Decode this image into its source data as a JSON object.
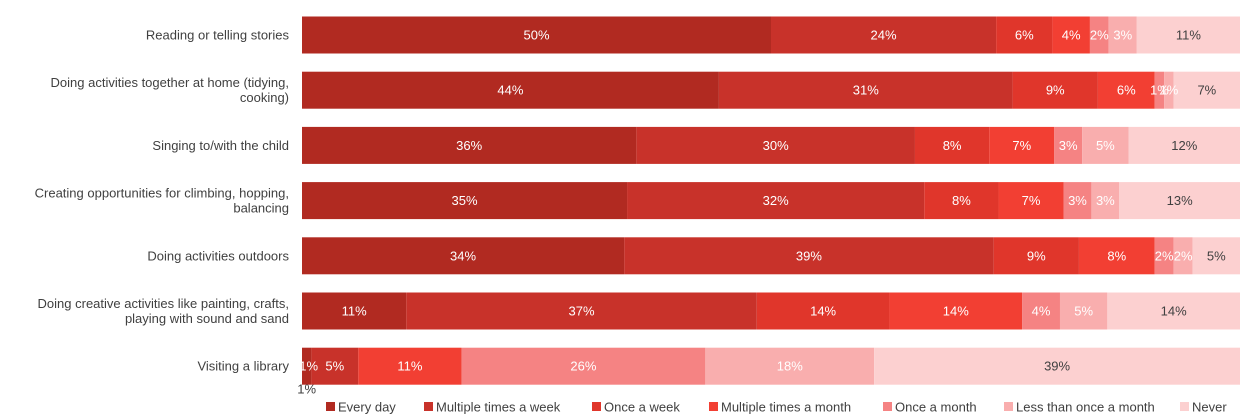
{
  "chart_data": {
    "type": "bar",
    "orientation": "horizontal",
    "stacked": true,
    "normalized": true,
    "categories": [
      "Reading or telling stories",
      "Doing activities together at home (tidying,\ncooking)",
      "Singing to/with the child",
      "Creating opportunities for climbing, hopping,\nbalancing",
      "Doing activities outdoors",
      "Doing creative activities like painting, crafts,\nplaying with sound and sand",
      "Visiting a library"
    ],
    "series": [
      {
        "name": "Every day",
        "color": "#B12A21",
        "text_color": "#ffffff",
        "values": [
          50,
          44,
          36,
          35,
          34,
          11,
          1
        ]
      },
      {
        "name": "Multiple times a week",
        "color": "#C8322A",
        "text_color": "#ffffff",
        "values": [
          24,
          31,
          30,
          32,
          39,
          37,
          5
        ]
      },
      {
        "name": "Once a week",
        "color": "#E0362B",
        "text_color": "#ffffff",
        "values": [
          6,
          9,
          8,
          8,
          9,
          14,
          0
        ]
      },
      {
        "name": "Multiple times a month",
        "color": "#F23F33",
        "text_color": "#ffffff",
        "values": [
          4,
          6,
          7,
          7,
          8,
          14,
          11
        ]
      },
      {
        "name": "Once a month",
        "color": "#F58383",
        "text_color": "#ffffff",
        "values": [
          2,
          1,
          3,
          3,
          2,
          4,
          26
        ]
      },
      {
        "name": "Less than once a month",
        "color": "#F9AEAE",
        "text_color": "#ffffff",
        "values": [
          3,
          1,
          5,
          3,
          2,
          5,
          18
        ]
      },
      {
        "name": "Never",
        "color": "#FCD0D0",
        "text_color": "#404040",
        "values": [
          11,
          7,
          12,
          13,
          5,
          14,
          39
        ]
      }
    ],
    "data_label_suffix": "%",
    "xlim": [
      0,
      100
    ],
    "legend_position": "bottom",
    "grid": false
  }
}
